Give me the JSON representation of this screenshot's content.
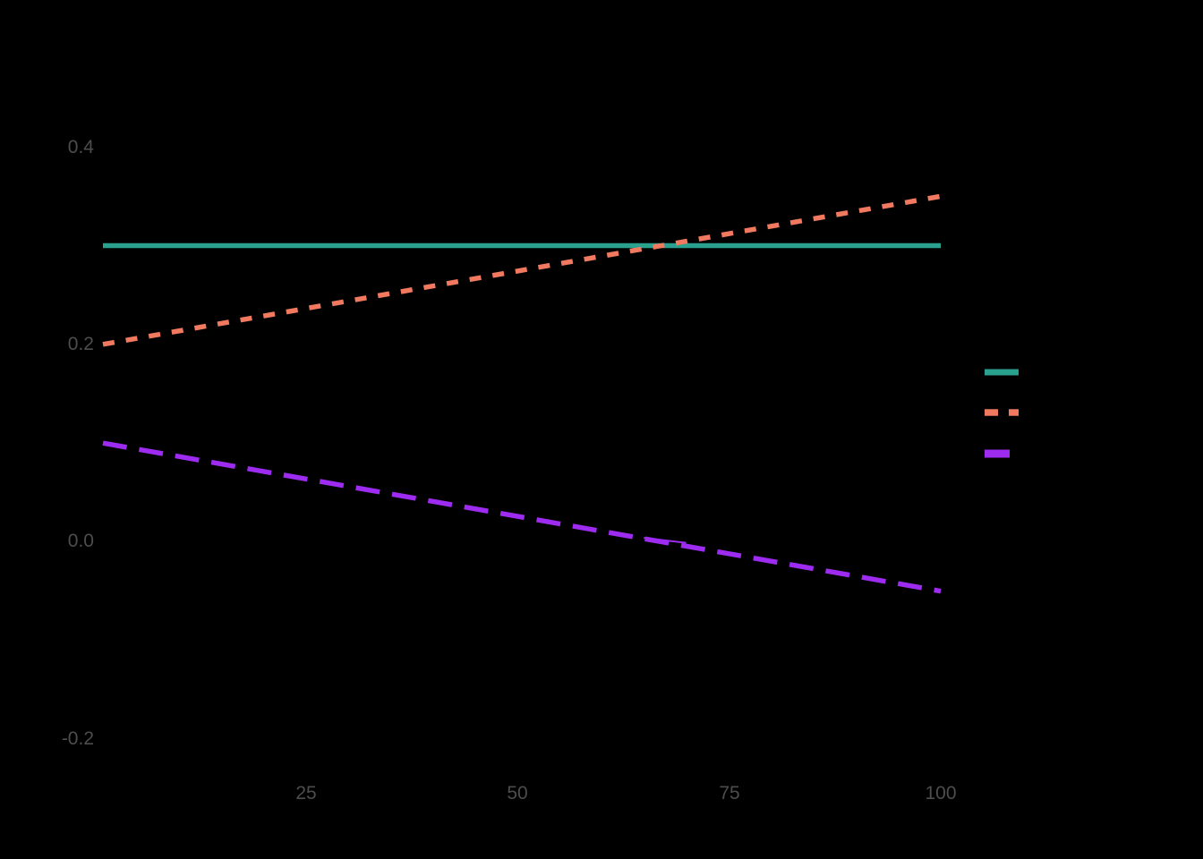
{
  "chart": {
    "background_color": "#000000",
    "axis_text_color": "#4d4d4d"
  },
  "chart_data": {
    "type": "line",
    "grid": "off",
    "x_axis": {
      "tick_labels": [
        "25",
        "50",
        "75",
        "100"
      ],
      "tick_values": [
        25,
        50,
        75,
        100
      ],
      "data_range": [
        1,
        100
      ]
    },
    "y_axis": {
      "tick_labels": [
        "0.4",
        "0.2",
        "0.0",
        "-0.2"
      ],
      "tick_values": [
        0.4,
        0.2,
        0.0,
        -0.2
      ],
      "shown_range": [
        -0.25,
        0.45
      ]
    },
    "series": [
      {
        "id": "teal-solid",
        "color": "#2aa08f",
        "line_style": "solid",
        "points": [
          {
            "x": 1,
            "y": 0.3
          },
          {
            "x": 100,
            "y": 0.3
          }
        ]
      },
      {
        "id": "salmon-dotted",
        "color": "#f0795f",
        "line_style": "dotted",
        "points": [
          {
            "x": 1,
            "y": 0.2
          },
          {
            "x": 100,
            "y": 0.35
          }
        ]
      },
      {
        "id": "purple-longdash",
        "color": "#9d2bf0",
        "line_style": "longdash",
        "points": [
          {
            "x": 1,
            "y": 0.1
          },
          {
            "x": 100,
            "y": -0.05
          }
        ]
      }
    ],
    "overlap_artifact": {
      "color": "#9d2bf0",
      "points": [
        {
          "x": 64.9,
          "y": 0.004
        },
        {
          "x": 69.9,
          "y": -0.001
        }
      ]
    },
    "legend": {
      "position": "right",
      "labels_visible": false
    }
  }
}
